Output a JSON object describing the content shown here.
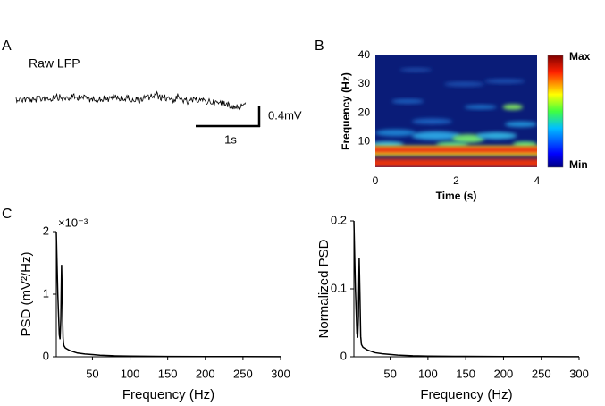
{
  "panel_labels": [
    "A",
    "B",
    "C"
  ],
  "raw_lfp": {
    "title": "Raw LFP",
    "scale_y": "0.4mV",
    "scale_x": "1s"
  },
  "chart_data": [
    {
      "type": "heatmap",
      "xlabel": "Time (s)",
      "ylabel": "Frequency (Hz)",
      "xlim": [
        0,
        4
      ],
      "xticks": [
        0,
        2,
        4
      ],
      "ylim": [
        1,
        40
      ],
      "yticks": [
        10,
        20,
        30,
        40
      ],
      "colorbar": {
        "max_label": "Max",
        "min_label": "Min"
      }
    },
    {
      "type": "line",
      "xlabel": "Frequency (Hz)",
      "ylabel": "PSD (mV²/Hz)",
      "multiplier": "×10⁻³",
      "color": "#000000",
      "xlim": [
        2,
        300
      ],
      "xticks": [
        50,
        100,
        150,
        200,
        250,
        300
      ],
      "ylim": [
        0,
        2
      ],
      "yticks": [
        0,
        1,
        2
      ],
      "x": [
        2,
        4,
        6,
        7,
        8,
        9,
        10,
        11,
        12,
        14,
        17,
        20,
        25,
        30,
        40,
        50,
        60,
        80,
        100,
        150,
        200,
        250,
        300
      ],
      "values": [
        2.0,
        1.0,
        0.35,
        0.28,
        0.6,
        1.47,
        0.9,
        0.3,
        0.18,
        0.14,
        0.12,
        0.1,
        0.08,
        0.06,
        0.045,
        0.035,
        0.025,
        0.015,
        0.01,
        0.006,
        0.004,
        0.003,
        0.002
      ]
    },
    {
      "type": "line",
      "xlabel": "Frequency (Hz)",
      "ylabel": "Normalized PSD",
      "color": "#000000",
      "xlim": [
        2,
        300
      ],
      "xticks": [
        50,
        100,
        150,
        200,
        250,
        300
      ],
      "ylim": [
        0,
        0.2
      ],
      "yticks": [
        0,
        0.1,
        0.2
      ],
      "x": [
        2,
        4,
        6,
        7,
        8,
        9,
        10,
        11,
        12,
        14,
        17,
        20,
        25,
        30,
        40,
        50,
        60,
        80,
        100,
        150,
        200,
        250,
        300
      ],
      "values": [
        0.2,
        0.1,
        0.035,
        0.028,
        0.06,
        0.145,
        0.09,
        0.03,
        0.018,
        0.014,
        0.012,
        0.01,
        0.008,
        0.006,
        0.0045,
        0.0035,
        0.0025,
        0.0015,
        0.001,
        0.0006,
        0.0004,
        0.0003,
        0.0002
      ]
    }
  ]
}
